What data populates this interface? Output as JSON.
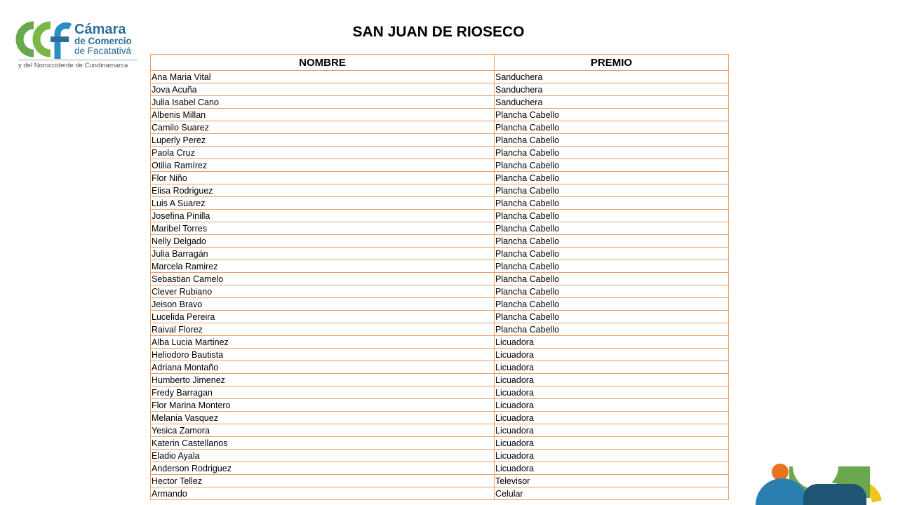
{
  "logo": {
    "name_line1": "Cámara",
    "name_line2": "de Comercio",
    "name_line3": "de Facatativá",
    "tagline": "y del Noroccidente de Cundinamarca",
    "colors": {
      "green": "#6aa84f",
      "blue": "#2a6f97"
    }
  },
  "title": "SAN JUAN DE RIOSECO",
  "table": {
    "headers": [
      "NOMBRE",
      "PREMIO"
    ],
    "border_color": "#e8a06a",
    "rows": [
      [
        "Ana Maria  Vital",
        "Sanduchera"
      ],
      [
        "Jova Acuña",
        "Sanduchera"
      ],
      [
        "Julia Isabel Cano",
        "Sanduchera"
      ],
      [
        "Albenis Millan",
        "Plancha Cabello"
      ],
      [
        "Camilo Suarez",
        "Plancha Cabello"
      ],
      [
        "Luperly Perez",
        "Plancha Cabello"
      ],
      [
        "Paola Cruz",
        "Plancha Cabello"
      ],
      [
        "Otilia Ramírez",
        "Plancha Cabello"
      ],
      [
        "Flor Niño",
        "Plancha Cabello"
      ],
      [
        "Elisa Rodriguez",
        "Plancha Cabello"
      ],
      [
        "Luis A Suarez",
        "Plancha Cabello"
      ],
      [
        "Josefina Pinilla",
        "Plancha Cabello"
      ],
      [
        "Maribel Torres",
        "Plancha Cabello"
      ],
      [
        "Nelly Delgado",
        "Plancha Cabello"
      ],
      [
        "Julia Barragán",
        "Plancha Cabello"
      ],
      [
        "Marcela Ramirez",
        "Plancha Cabello"
      ],
      [
        "Sebastian Camelo",
        "Plancha Cabello"
      ],
      [
        "Clever Rubiano",
        "Plancha Cabello"
      ],
      [
        "Jeison Bravo",
        "Plancha Cabello"
      ],
      [
        "Lucelida Pereira",
        "Plancha Cabello"
      ],
      [
        "Raival Florez",
        "Plancha Cabello"
      ],
      [
        "Alba Lucia Martinez",
        "Licuadora"
      ],
      [
        "Heliodoro Bautista",
        "Licuadora"
      ],
      [
        "Adriana Montaño",
        "Licuadora"
      ],
      [
        "Humberto Jimenez",
        "Licuadora"
      ],
      [
        "Fredy Barragan",
        "Licuadora"
      ],
      [
        "Flor Marina Montero",
        "Licuadora"
      ],
      [
        "Melania Vasquez",
        "Licuadora"
      ],
      [
        "Yesica Zamora",
        "Licuadora"
      ],
      [
        "Katerin Castellanos",
        "Licuadora"
      ],
      [
        "Eladio Ayala",
        "Licuadora"
      ],
      [
        "Anderson Rodriguez",
        "Licuadora"
      ],
      [
        "Hector Tellez",
        "Televisor"
      ],
      [
        "Armando",
        "Celular"
      ]
    ]
  }
}
